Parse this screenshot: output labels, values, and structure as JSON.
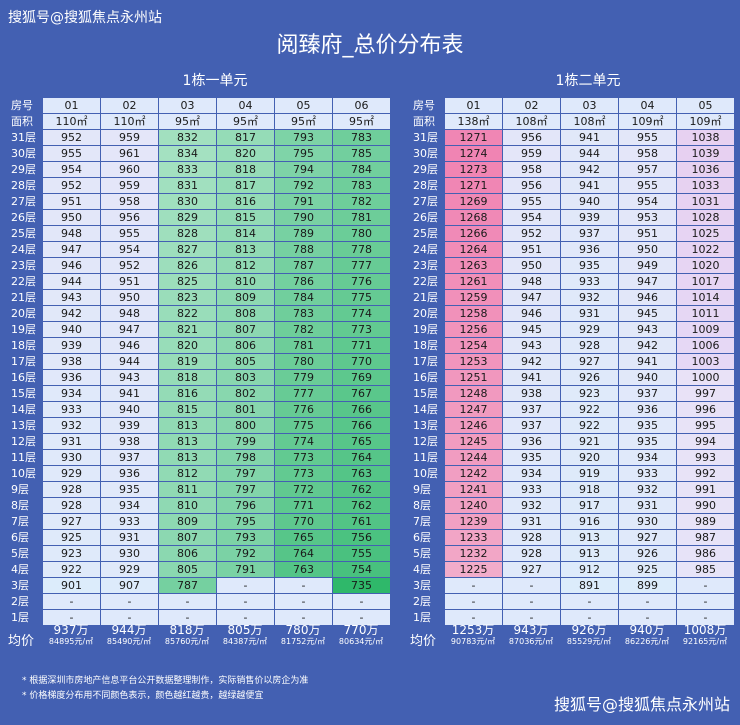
{
  "watermark_top": "搜狐号@搜狐焦点永州站",
  "watermark_bottom": "搜狐号@搜狐焦点永州站",
  "title": "阅臻府_总价分布表",
  "avg_label": "均价",
  "notes": [
    "* 根据深圳市房地产信息平台公开数据整理制作，实际销售价以房企为准",
    "* 价格梯度分布用不同颜色表示，颜色越红越贵，越绿越便宜"
  ],
  "colors": {
    "bg": "#4360b2"
  },
  "building1": {
    "name": "1栋一单元",
    "row_label_room": "房号",
    "row_label_area": "面积",
    "units": [
      "01",
      "02",
      "03",
      "04",
      "05",
      "06"
    ],
    "areas": [
      "110㎡",
      "110㎡",
      "95㎡",
      "95㎡",
      "95㎡",
      "95㎡"
    ],
    "floors": [
      "31层",
      "30层",
      "29层",
      "28层",
      "27层",
      "26层",
      "25层",
      "24层",
      "23层",
      "22层",
      "21层",
      "20层",
      "19层",
      "18层",
      "17层",
      "16层",
      "15层",
      "14层",
      "13层",
      "12层",
      "11层",
      "10层",
      "9层",
      "8层",
      "7层",
      "6层",
      "5层",
      "4层",
      "3层",
      "2层",
      "1层"
    ],
    "prices": [
      [
        "952",
        "959",
        "832",
        "817",
        "793",
        "783"
      ],
      [
        "955",
        "961",
        "834",
        "820",
        "795",
        "785"
      ],
      [
        "954",
        "960",
        "833",
        "818",
        "794",
        "784"
      ],
      [
        "952",
        "959",
        "831",
        "817",
        "792",
        "783"
      ],
      [
        "951",
        "958",
        "830",
        "816",
        "791",
        "782"
      ],
      [
        "950",
        "956",
        "829",
        "815",
        "790",
        "781"
      ],
      [
        "948",
        "955",
        "828",
        "814",
        "789",
        "780"
      ],
      [
        "947",
        "954",
        "827",
        "813",
        "788",
        "778"
      ],
      [
        "946",
        "952",
        "826",
        "812",
        "787",
        "777"
      ],
      [
        "944",
        "951",
        "825",
        "810",
        "786",
        "776"
      ],
      [
        "943",
        "950",
        "823",
        "809",
        "784",
        "775"
      ],
      [
        "942",
        "948",
        "822",
        "808",
        "783",
        "774"
      ],
      [
        "940",
        "947",
        "821",
        "807",
        "782",
        "773"
      ],
      [
        "939",
        "946",
        "820",
        "806",
        "781",
        "771"
      ],
      [
        "938",
        "944",
        "819",
        "805",
        "780",
        "770"
      ],
      [
        "936",
        "943",
        "818",
        "803",
        "779",
        "769"
      ],
      [
        "934",
        "941",
        "816",
        "802",
        "777",
        "767"
      ],
      [
        "933",
        "940",
        "815",
        "801",
        "776",
        "766"
      ],
      [
        "932",
        "939",
        "813",
        "800",
        "775",
        "766"
      ],
      [
        "931",
        "938",
        "813",
        "799",
        "774",
        "765"
      ],
      [
        "930",
        "937",
        "813",
        "798",
        "773",
        "764"
      ],
      [
        "929",
        "936",
        "812",
        "797",
        "773",
        "763"
      ],
      [
        "928",
        "935",
        "811",
        "797",
        "772",
        "762"
      ],
      [
        "928",
        "934",
        "810",
        "796",
        "771",
        "762"
      ],
      [
        "927",
        "933",
        "809",
        "795",
        "770",
        "761"
      ],
      [
        "925",
        "931",
        "807",
        "793",
        "765",
        "756"
      ],
      [
        "923",
        "930",
        "806",
        "792",
        "764",
        "755"
      ],
      [
        "922",
        "929",
        "805",
        "791",
        "763",
        "754"
      ],
      [
        "901",
        "907",
        "787",
        "-",
        "-",
        "735"
      ],
      [
        "-",
        "-",
        "-",
        "-",
        "-",
        "-"
      ],
      [
        "-",
        "-",
        "-",
        "-",
        "-",
        "-"
      ]
    ],
    "summary": [
      {
        "total": "937万",
        "unit": "84895元/㎡"
      },
      {
        "total": "944万",
        "unit": "85490元/㎡"
      },
      {
        "total": "818万",
        "unit": "85760元/㎡"
      },
      {
        "total": "805万",
        "unit": "84387元/㎡"
      },
      {
        "total": "780万",
        "unit": "81752元/㎡"
      },
      {
        "total": "770万",
        "unit": "80634元/㎡"
      }
    ]
  },
  "building2": {
    "name": "1栋二单元",
    "row_label_room": "房号",
    "row_label_area": "面积",
    "units": [
      "01",
      "02",
      "03",
      "04",
      "05"
    ],
    "areas": [
      "138㎡",
      "108㎡",
      "108㎡",
      "109㎡",
      "109㎡"
    ],
    "floors": [
      "31层",
      "30层",
      "29层",
      "28层",
      "27层",
      "26层",
      "25层",
      "24层",
      "23层",
      "22层",
      "21层",
      "20层",
      "19层",
      "18层",
      "17层",
      "16层",
      "15层",
      "14层",
      "13层",
      "12层",
      "11层",
      "10层",
      "9层",
      "8层",
      "7层",
      "6层",
      "5层",
      "4层",
      "3层",
      "2层",
      "1层"
    ],
    "prices": [
      [
        "1271",
        "956",
        "941",
        "955",
        "1038"
      ],
      [
        "1274",
        "959",
        "944",
        "958",
        "1039"
      ],
      [
        "1273",
        "958",
        "942",
        "957",
        "1036"
      ],
      [
        "1271",
        "956",
        "941",
        "955",
        "1033"
      ],
      [
        "1269",
        "955",
        "940",
        "954",
        "1031"
      ],
      [
        "1268",
        "954",
        "939",
        "953",
        "1028"
      ],
      [
        "1266",
        "952",
        "937",
        "951",
        "1025"
      ],
      [
        "1264",
        "951",
        "936",
        "950",
        "1022"
      ],
      [
        "1263",
        "950",
        "935",
        "949",
        "1020"
      ],
      [
        "1261",
        "948",
        "933",
        "947",
        "1017"
      ],
      [
        "1259",
        "947",
        "932",
        "946",
        "1014"
      ],
      [
        "1258",
        "946",
        "931",
        "945",
        "1011"
      ],
      [
        "1256",
        "945",
        "929",
        "943",
        "1009"
      ],
      [
        "1254",
        "943",
        "928",
        "942",
        "1006"
      ],
      [
        "1253",
        "942",
        "927",
        "941",
        "1003"
      ],
      [
        "1251",
        "941",
        "926",
        "940",
        "1000"
      ],
      [
        "1248",
        "938",
        "923",
        "937",
        "997"
      ],
      [
        "1247",
        "937",
        "922",
        "936",
        "996"
      ],
      [
        "1246",
        "937",
        "922",
        "935",
        "995"
      ],
      [
        "1245",
        "936",
        "921",
        "935",
        "994"
      ],
      [
        "1244",
        "935",
        "920",
        "934",
        "993"
      ],
      [
        "1242",
        "934",
        "919",
        "933",
        "992"
      ],
      [
        "1241",
        "933",
        "918",
        "932",
        "991"
      ],
      [
        "1240",
        "932",
        "917",
        "931",
        "990"
      ],
      [
        "1239",
        "931",
        "916",
        "930",
        "989"
      ],
      [
        "1233",
        "928",
        "913",
        "927",
        "987"
      ],
      [
        "1232",
        "928",
        "913",
        "926",
        "986"
      ],
      [
        "1225",
        "927",
        "912",
        "925",
        "985"
      ],
      [
        "-",
        "-",
        "891",
        "899",
        "-"
      ],
      [
        "-",
        "-",
        "-",
        "-",
        "-"
      ],
      [
        "-",
        "-",
        "-",
        "-",
        "-"
      ]
    ],
    "summary": [
      {
        "total": "1253万",
        "unit": "90783元/㎡"
      },
      {
        "total": "943万",
        "unit": "87036元/㎡"
      },
      {
        "total": "926万",
        "unit": "85529元/㎡"
      },
      {
        "total": "940万",
        "unit": "86226元/㎡"
      },
      {
        "total": "1008万",
        "unit": "92165元/㎡"
      }
    ]
  }
}
